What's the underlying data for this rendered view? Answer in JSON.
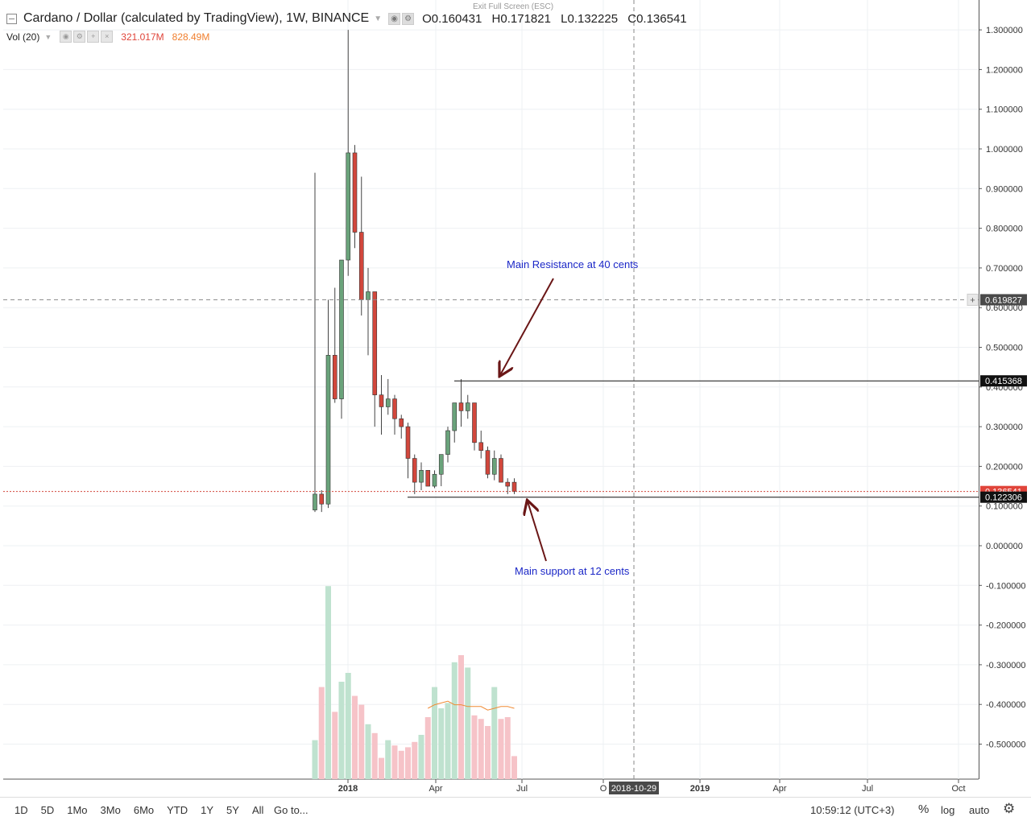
{
  "header": {
    "title": "Cardano / Dollar (calculated by TradingView), 1W, BINANCE",
    "ohlc": {
      "open": "0.160431",
      "high": "0.171821",
      "low": "0.132225",
      "close": "0.136541"
    },
    "exit_fullscreen": "Exit Full Screen (ESC)"
  },
  "volume_legend": {
    "label": "Vol (20)",
    "vol": "321.017M",
    "ma": "828.49M"
  },
  "chart_data": {
    "type": "candlestick",
    "price_axis": {
      "ticks": [
        "1.300000",
        "1.200000",
        "1.100000",
        "1.000000",
        "0.900000",
        "0.800000",
        "0.700000",
        "0.600000",
        "0.500000",
        "0.400000",
        "0.300000",
        "0.200000",
        "0.100000",
        "0.000000",
        "-0.100000",
        "-0.200000",
        "-0.300000",
        "-0.400000",
        "-0.500000"
      ],
      "range": [
        -0.58,
        1.35
      ]
    },
    "time_axis": {
      "labels": [
        "2018",
        "Apr",
        "Jul",
        "O",
        "2019",
        "Apr",
        "Jul",
        "Oct"
      ],
      "crosshair_label": "2018-10-29"
    },
    "price_labels": {
      "crosshair": "0.619827",
      "resistance": "0.415368",
      "last": "0.136541",
      "support": "0.122306"
    },
    "lines": {
      "crosshair_price": 0.619827,
      "resistance": 0.415368,
      "support": 0.122306,
      "last": 0.136541
    },
    "candles": [
      {
        "o": 0.09,
        "h": 0.94,
        "l": 0.085,
        "c": 0.13,
        "v": 0.22
      },
      {
        "o": 0.13,
        "h": 0.14,
        "l": 0.085,
        "c": 0.105,
        "v": 0.52
      },
      {
        "o": 0.105,
        "h": 0.62,
        "l": 0.095,
        "c": 0.48,
        "v": 1.09
      },
      {
        "o": 0.48,
        "h": 0.65,
        "l": 0.36,
        "c": 0.37,
        "v": 0.38
      },
      {
        "o": 0.37,
        "h": 0.72,
        "l": 0.32,
        "c": 0.72,
        "v": 0.55
      },
      {
        "o": 0.72,
        "h": 1.3,
        "l": 0.68,
        "c": 0.99,
        "v": 0.6
      },
      {
        "o": 0.99,
        "h": 1.01,
        "l": 0.75,
        "c": 0.79,
        "v": 0.47
      },
      {
        "o": 0.79,
        "h": 0.93,
        "l": 0.58,
        "c": 0.62,
        "v": 0.42
      },
      {
        "o": 0.62,
        "h": 0.7,
        "l": 0.48,
        "c": 0.64,
        "v": 0.31
      },
      {
        "o": 0.64,
        "h": 0.64,
        "l": 0.3,
        "c": 0.38,
        "v": 0.26
      },
      {
        "o": 0.38,
        "h": 0.43,
        "l": 0.28,
        "c": 0.35,
        "v": 0.12
      },
      {
        "o": 0.35,
        "h": 0.42,
        "l": 0.33,
        "c": 0.37,
        "v": 0.22
      },
      {
        "o": 0.37,
        "h": 0.38,
        "l": 0.28,
        "c": 0.32,
        "v": 0.19
      },
      {
        "o": 0.32,
        "h": 0.33,
        "l": 0.27,
        "c": 0.3,
        "v": 0.16
      },
      {
        "o": 0.3,
        "h": 0.31,
        "l": 0.17,
        "c": 0.22,
        "v": 0.18
      },
      {
        "o": 0.22,
        "h": 0.23,
        "l": 0.13,
        "c": 0.16,
        "v": 0.21
      },
      {
        "o": 0.16,
        "h": 0.21,
        "l": 0.14,
        "c": 0.19,
        "v": 0.25
      },
      {
        "o": 0.19,
        "h": 0.19,
        "l": 0.15,
        "c": 0.15,
        "v": 0.35
      },
      {
        "o": 0.15,
        "h": 0.19,
        "l": 0.145,
        "c": 0.18,
        "v": 0.52
      },
      {
        "o": 0.18,
        "h": 0.22,
        "l": 0.15,
        "c": 0.23,
        "v": 0.4
      },
      {
        "o": 0.23,
        "h": 0.3,
        "l": 0.21,
        "c": 0.29,
        "v": 0.43
      },
      {
        "o": 0.29,
        "h": 0.36,
        "l": 0.26,
        "c": 0.36,
        "v": 0.66
      },
      {
        "o": 0.36,
        "h": 0.42,
        "l": 0.3,
        "c": 0.34,
        "v": 0.7
      },
      {
        "o": 0.34,
        "h": 0.38,
        "l": 0.32,
        "c": 0.36,
        "v": 0.63
      },
      {
        "o": 0.36,
        "h": 0.36,
        "l": 0.24,
        "c": 0.26,
        "v": 0.36
      },
      {
        "o": 0.26,
        "h": 0.29,
        "l": 0.22,
        "c": 0.24,
        "v": 0.34
      },
      {
        "o": 0.24,
        "h": 0.25,
        "l": 0.17,
        "c": 0.18,
        "v": 0.3
      },
      {
        "o": 0.18,
        "h": 0.24,
        "l": 0.165,
        "c": 0.22,
        "v": 0.52
      },
      {
        "o": 0.22,
        "h": 0.23,
        "l": 0.16,
        "c": 0.16,
        "v": 0.34
      },
      {
        "o": 0.16,
        "h": 0.17,
        "l": 0.13,
        "c": 0.15,
        "v": 0.35
      },
      {
        "o": 0.16,
        "h": 0.17,
        "l": 0.13,
        "c": 0.137,
        "v": 0.13
      }
    ],
    "volume_ma": [
      null,
      null,
      null,
      null,
      null,
      null,
      null,
      null,
      null,
      null,
      null,
      null,
      null,
      null,
      null,
      null,
      null,
      0.4,
      0.42,
      0.43,
      0.44,
      0.42,
      0.42,
      0.41,
      0.41,
      0.41,
      0.39,
      0.4,
      0.41,
      0.41,
      0.4
    ]
  },
  "annotations": {
    "resistance": "Main Resistance at 40 cents",
    "support": "Main support at 12 cents"
  },
  "colors": {
    "up": "#6aa37b",
    "down": "#d2473c",
    "vol_up": "#bfe2cf",
    "vol_down": "#f6c3c8",
    "annotation": "#1b27c7",
    "arrow": "#6a1616"
  },
  "bottombar": {
    "timeframes": [
      "1D",
      "5D",
      "1Mo",
      "3Mo",
      "6Mo",
      "YTD",
      "1Y",
      "5Y",
      "All"
    ],
    "goto": "Go to...",
    "clock": "10:59:12 (UTC+3)",
    "percent": "%",
    "log": "log",
    "auto": "auto"
  }
}
